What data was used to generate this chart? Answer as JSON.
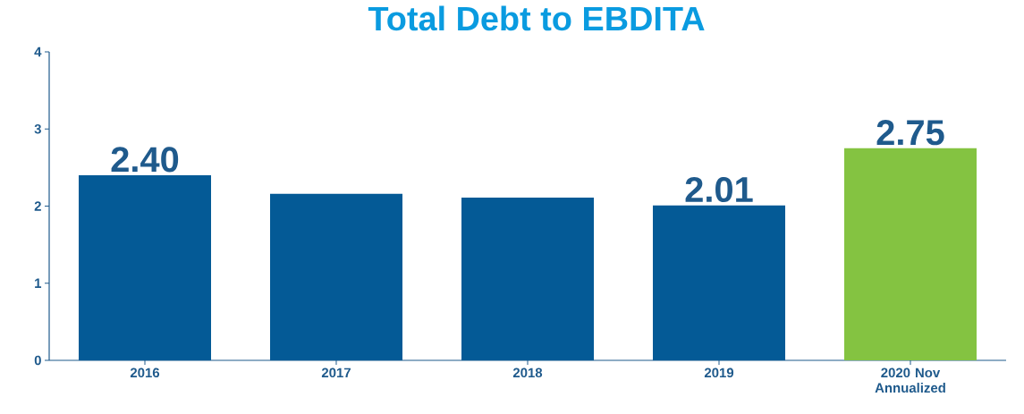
{
  "chart_data": {
    "type": "bar",
    "title": "Total Debt to EBDITA",
    "categories": [
      "2016",
      "2017",
      "2018",
      "2019",
      "2020 Nov Annualized"
    ],
    "values": [
      2.4,
      2.16,
      2.11,
      2.01,
      2.75
    ],
    "colors": [
      "#045a96",
      "#045a96",
      "#045a96",
      "#045a96",
      "#84c341"
    ],
    "value_labels": [
      "2.40",
      null,
      null,
      "2.01",
      "2.75"
    ],
    "ylim": [
      0,
      4
    ],
    "yticks": [
      0,
      1,
      2,
      3,
      4
    ],
    "grid": false
  }
}
